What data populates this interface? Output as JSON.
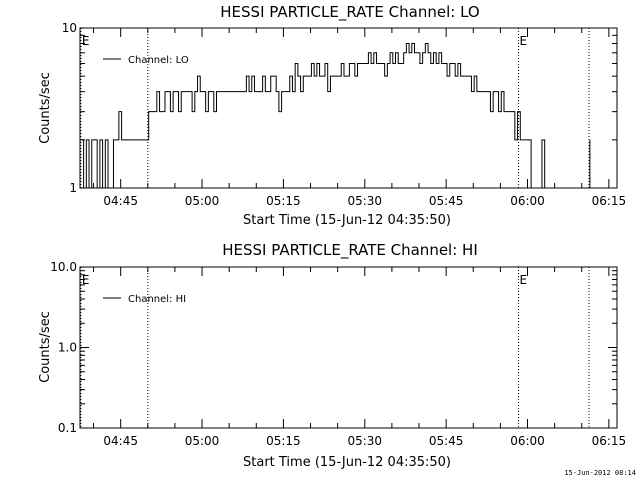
{
  "chart_data": [
    {
      "type": "line",
      "title": "HESSI PARTICLE_RATE Channel: LO",
      "xlabel": "Start Time (15-Jun-12 04:35:50)",
      "ylabel": "Counts/sec",
      "yscale": "log",
      "ylim": [
        1,
        10
      ],
      "yticks": [
        {
          "value": 1,
          "label": "1"
        },
        {
          "value": 10,
          "label": "10"
        }
      ],
      "xlim": [
        "04:37:30",
        "06:16:30"
      ],
      "xticks": [
        "04:45",
        "05:00",
        "05:15",
        "05:30",
        "05:45",
        "06:00",
        "06:15"
      ],
      "legend": "top-left",
      "markers": [
        {
          "x": "04:37:40",
          "label": "E"
        },
        {
          "x": "04:50:00",
          "label": ""
        },
        {
          "x": "05:58:20",
          "label": "E"
        },
        {
          "x": "06:11:20",
          "label": ""
        }
      ],
      "series": [
        {
          "name": "Channel: LO",
          "segments": [
            {
              "x": [
                "04:37:40",
                "04:38:10",
                "04:38:40",
                "04:39:10",
                "04:39:40",
                "04:40:10",
                "04:40:40",
                "04:41:10",
                "04:41:40",
                "04:42:10",
                "04:42:40",
                "04:43:10",
                "04:43:40",
                "04:44:10",
                "04:44:40",
                "04:45:10",
                "04:45:40",
                "04:46:10",
                "04:46:40",
                "04:47:10",
                "04:47:40",
                "04:48:10",
                "04:48:40",
                "04:49:10",
                "04:49:40",
                "04:50:10",
                "04:50:40",
                "04:51:10",
                "04:51:40",
                "04:52:10",
                "04:52:40",
                "04:53:10",
                "04:53:40",
                "04:54:10",
                "04:54:40",
                "04:55:10",
                "04:55:40",
                "04:56:10",
                "04:56:40",
                "04:57:10",
                "04:57:40",
                "04:58:10",
                "04:58:40",
                "04:59:10",
                "04:59:40",
                "05:00:10",
                "05:00:40",
                "05:01:10",
                "05:01:40",
                "05:02:10",
                "05:02:40",
                "05:03:10",
                "05:03:40",
                "05:04:10",
                "05:04:40",
                "05:05:10",
                "05:05:40",
                "05:06:10",
                "05:06:40",
                "05:07:10",
                "05:07:40",
                "05:08:10",
                "05:08:40",
                "05:09:10",
                "05:09:40",
                "05:10:10",
                "05:10:40",
                "05:11:10",
                "05:11:40",
                "05:12:10",
                "05:12:40",
                "05:13:10",
                "05:13:40",
                "05:14:10",
                "05:14:40",
                "05:15:10",
                "05:15:40",
                "05:16:10",
                "05:16:40",
                "05:17:10",
                "05:17:40",
                "05:18:10",
                "05:18:40",
                "05:19:10",
                "05:19:40",
                "05:20:10",
                "05:20:40",
                "05:21:10",
                "05:21:40",
                "05:22:10",
                "05:22:40",
                "05:23:10",
                "05:23:40",
                "05:24:10",
                "05:24:40",
                "05:25:10",
                "05:25:40",
                "05:26:10",
                "05:26:40",
                "05:27:10",
                "05:27:40",
                "05:28:10",
                "05:28:40",
                "05:29:10",
                "05:29:40",
                "05:30:10",
                "05:30:40",
                "05:31:10",
                "05:31:40",
                "05:32:10",
                "05:32:40",
                "05:33:10",
                "05:33:40",
                "05:34:10",
                "05:34:40",
                "05:35:10",
                "05:35:40",
                "05:36:10",
                "05:36:40",
                "05:37:10",
                "05:37:40",
                "05:38:10",
                "05:38:40",
                "05:39:10",
                "05:39:40",
                "05:40:10",
                "05:40:40",
                "05:41:10",
                "05:41:40",
                "05:42:10",
                "05:42:40",
                "05:43:10",
                "05:43:40",
                "05:44:10",
                "05:44:40",
                "05:45:10",
                "05:45:40",
                "05:46:10",
                "05:46:40",
                "05:47:10",
                "05:47:40",
                "05:48:10",
                "05:48:40",
                "05:49:10",
                "05:49:40",
                "05:50:10",
                "05:50:40",
                "05:51:10",
                "05:51:40",
                "05:52:10",
                "05:52:40",
                "05:53:10",
                "05:53:40",
                "05:54:10",
                "05:54:40",
                "05:55:10",
                "05:55:40",
                "05:56:10",
                "05:56:40",
                "05:57:10",
                "05:57:40",
                "05:58:10",
                "05:58:40",
                "05:59:10",
                "05:59:40",
                "06:00:10",
                "06:00:40"
              ],
              "y": [
                2,
                1,
                2,
                1,
                2,
                2,
                1,
                2,
                1,
                2,
                1,
                1,
                2,
                2,
                3,
                2,
                2,
                2,
                2,
                2,
                2,
                2,
                2,
                2,
                2,
                3,
                3,
                3,
                4,
                3,
                3,
                4,
                4,
                3,
                4,
                4,
                3,
                4,
                4,
                4,
                4,
                3,
                4,
                5,
                4,
                4,
                3,
                4,
                4,
                3,
                4,
                4,
                4,
                4,
                4,
                4,
                4,
                4,
                4,
                4,
                4,
                5,
                4,
                5,
                4,
                4,
                4,
                5,
                4,
                4,
                5,
                5,
                4,
                3,
                4,
                4,
                4,
                5,
                4,
                6,
                5,
                4,
                5,
                5,
                5,
                6,
                5,
                6,
                5,
                5,
                6,
                4,
                5,
                5,
                5,
                5,
                6,
                5,
                5,
                6,
                6,
                5,
                6,
                6,
                6,
                6,
                7,
                6,
                7,
                6,
                6,
                6,
                5,
                6,
                7,
                6,
                7,
                6,
                6,
                7,
                8,
                7,
                8,
                7,
                7,
                6,
                7,
                8,
                7,
                6,
                7,
                6,
                7,
                6,
                6,
                5,
                6,
                6,
                5,
                6,
                5,
                5,
                5,
                5,
                4,
                5,
                4,
                4,
                4,
                4,
                4,
                3,
                4,
                4,
                3,
                4,
                3,
                3,
                3,
                3,
                2,
                3,
                2,
                2,
                2,
                2,
                1
              ]
            },
            {
              "x": [
                "06:01:10",
                "06:01:40"
              ],
              "y": [
                1,
                1
              ]
            },
            {
              "x": [
                "06:02:10",
                "06:02:40",
                "06:03:10"
              ],
              "y": [
                1,
                2,
                1
              ]
            },
            {
              "x": [
                "06:11:20",
                "06:11:30"
              ],
              "y": [
                1,
                2
              ]
            }
          ]
        }
      ]
    },
    {
      "type": "line",
      "title": "HESSI PARTICLE_RATE Channel: HI",
      "xlabel": "Start Time (15-Jun-12 04:35:50)",
      "ylabel": "Counts/sec",
      "yscale": "log",
      "ylim": [
        0.1,
        10
      ],
      "yticks": [
        {
          "value": 0.1,
          "label": "0.1"
        },
        {
          "value": 1,
          "label": "1.0"
        },
        {
          "value": 10,
          "label": "10.0"
        }
      ],
      "xlim": [
        "04:37:30",
        "06:16:30"
      ],
      "xticks": [
        "04:45",
        "05:00",
        "05:15",
        "05:30",
        "05:45",
        "06:00",
        "06:15"
      ],
      "legend": "top-left",
      "markers": [
        {
          "x": "04:37:40",
          "label": "E"
        },
        {
          "x": "04:50:00",
          "label": ""
        },
        {
          "x": "05:58:20",
          "label": "E"
        },
        {
          "x": "06:11:20",
          "label": ""
        }
      ],
      "series": [
        {
          "name": "Channel: HI",
          "segments": []
        }
      ]
    }
  ],
  "footer": {
    "timestamp": "15-Jun-2012 08:14"
  }
}
